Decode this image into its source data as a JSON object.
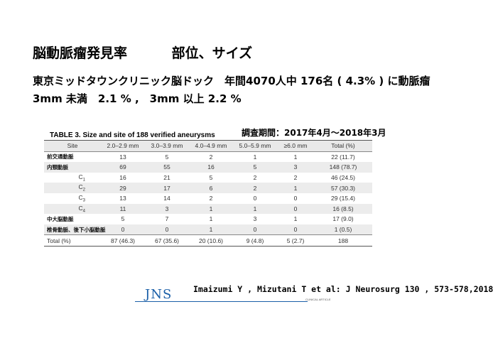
{
  "title": {
    "main": "脳動脈瘤発見率",
    "sub": "部位、サイズ"
  },
  "summary": {
    "line1": "東京ミッドタウンクリニック脳ドック　年間4070人中 176名 ( 4.3% ) に動脈瘤",
    "line2": "3mm 未満　2.1 % ,　3mm 以上 2.2 %"
  },
  "table": {
    "caption": "TABLE 3. Size and site of 188 verified aneurysms",
    "survey_period": "調査期間：2017年4月～2018年3月",
    "headers": [
      "Site",
      "2.0–2.9 mm",
      "3.0–3.9 mm",
      "4.0–4.9 mm",
      "5.0–5.9 mm",
      "≥6.0 mm",
      "Total (%)"
    ],
    "rows": [
      {
        "site": "前交通動脈",
        "cells": [
          "13",
          "5",
          "2",
          "1",
          "1",
          "22 (11.7)"
        ]
      },
      {
        "site": "内頸動脈",
        "cells": [
          "69",
          "55",
          "16",
          "5",
          "3",
          "148 (78.7)"
        ]
      },
      {
        "site_letter": "C",
        "site_sub": "1",
        "cells": [
          "16",
          "21",
          "5",
          "2",
          "2",
          "46 (24.5)"
        ]
      },
      {
        "site_letter": "C",
        "site_sub": "2",
        "cells": [
          "29",
          "17",
          "6",
          "2",
          "1",
          "57 (30.3)"
        ]
      },
      {
        "site_letter": "C",
        "site_sub": "3",
        "cells": [
          "13",
          "14",
          "2",
          "0",
          "0",
          "29 (15.4)"
        ]
      },
      {
        "site_letter": "C",
        "site_sub": "4",
        "cells": [
          "11",
          "3",
          "1",
          "1",
          "0",
          "16 (8.5)"
        ]
      },
      {
        "site": "中大脳動脈",
        "cells": [
          "5",
          "7",
          "1",
          "3",
          "1",
          "17 (9.0)"
        ]
      },
      {
        "site": "椎骨動脈、後下小脳動脈",
        "cells": [
          "0",
          "0",
          "1",
          "0",
          "0",
          "1 (0.5)"
        ]
      }
    ],
    "total": {
      "site": "Total (%)",
      "cells": [
        "87 (46.3)",
        "67 (35.6)",
        "20 (10.6)",
        "9 (4.8)",
        "5 (2.7)",
        "188"
      ]
    }
  },
  "footer": {
    "logo": "JNS",
    "logo_sub": "CLINICAL ARTICLE",
    "citation": "Imaizumi Y , Mizutani T et al: J Neurosurg 130 , 573-578,2018"
  },
  "colors": {
    "header_bg": "#e9e9e9",
    "stripe_bg": "#ececec",
    "logo_blue": "#1a5fa8"
  }
}
